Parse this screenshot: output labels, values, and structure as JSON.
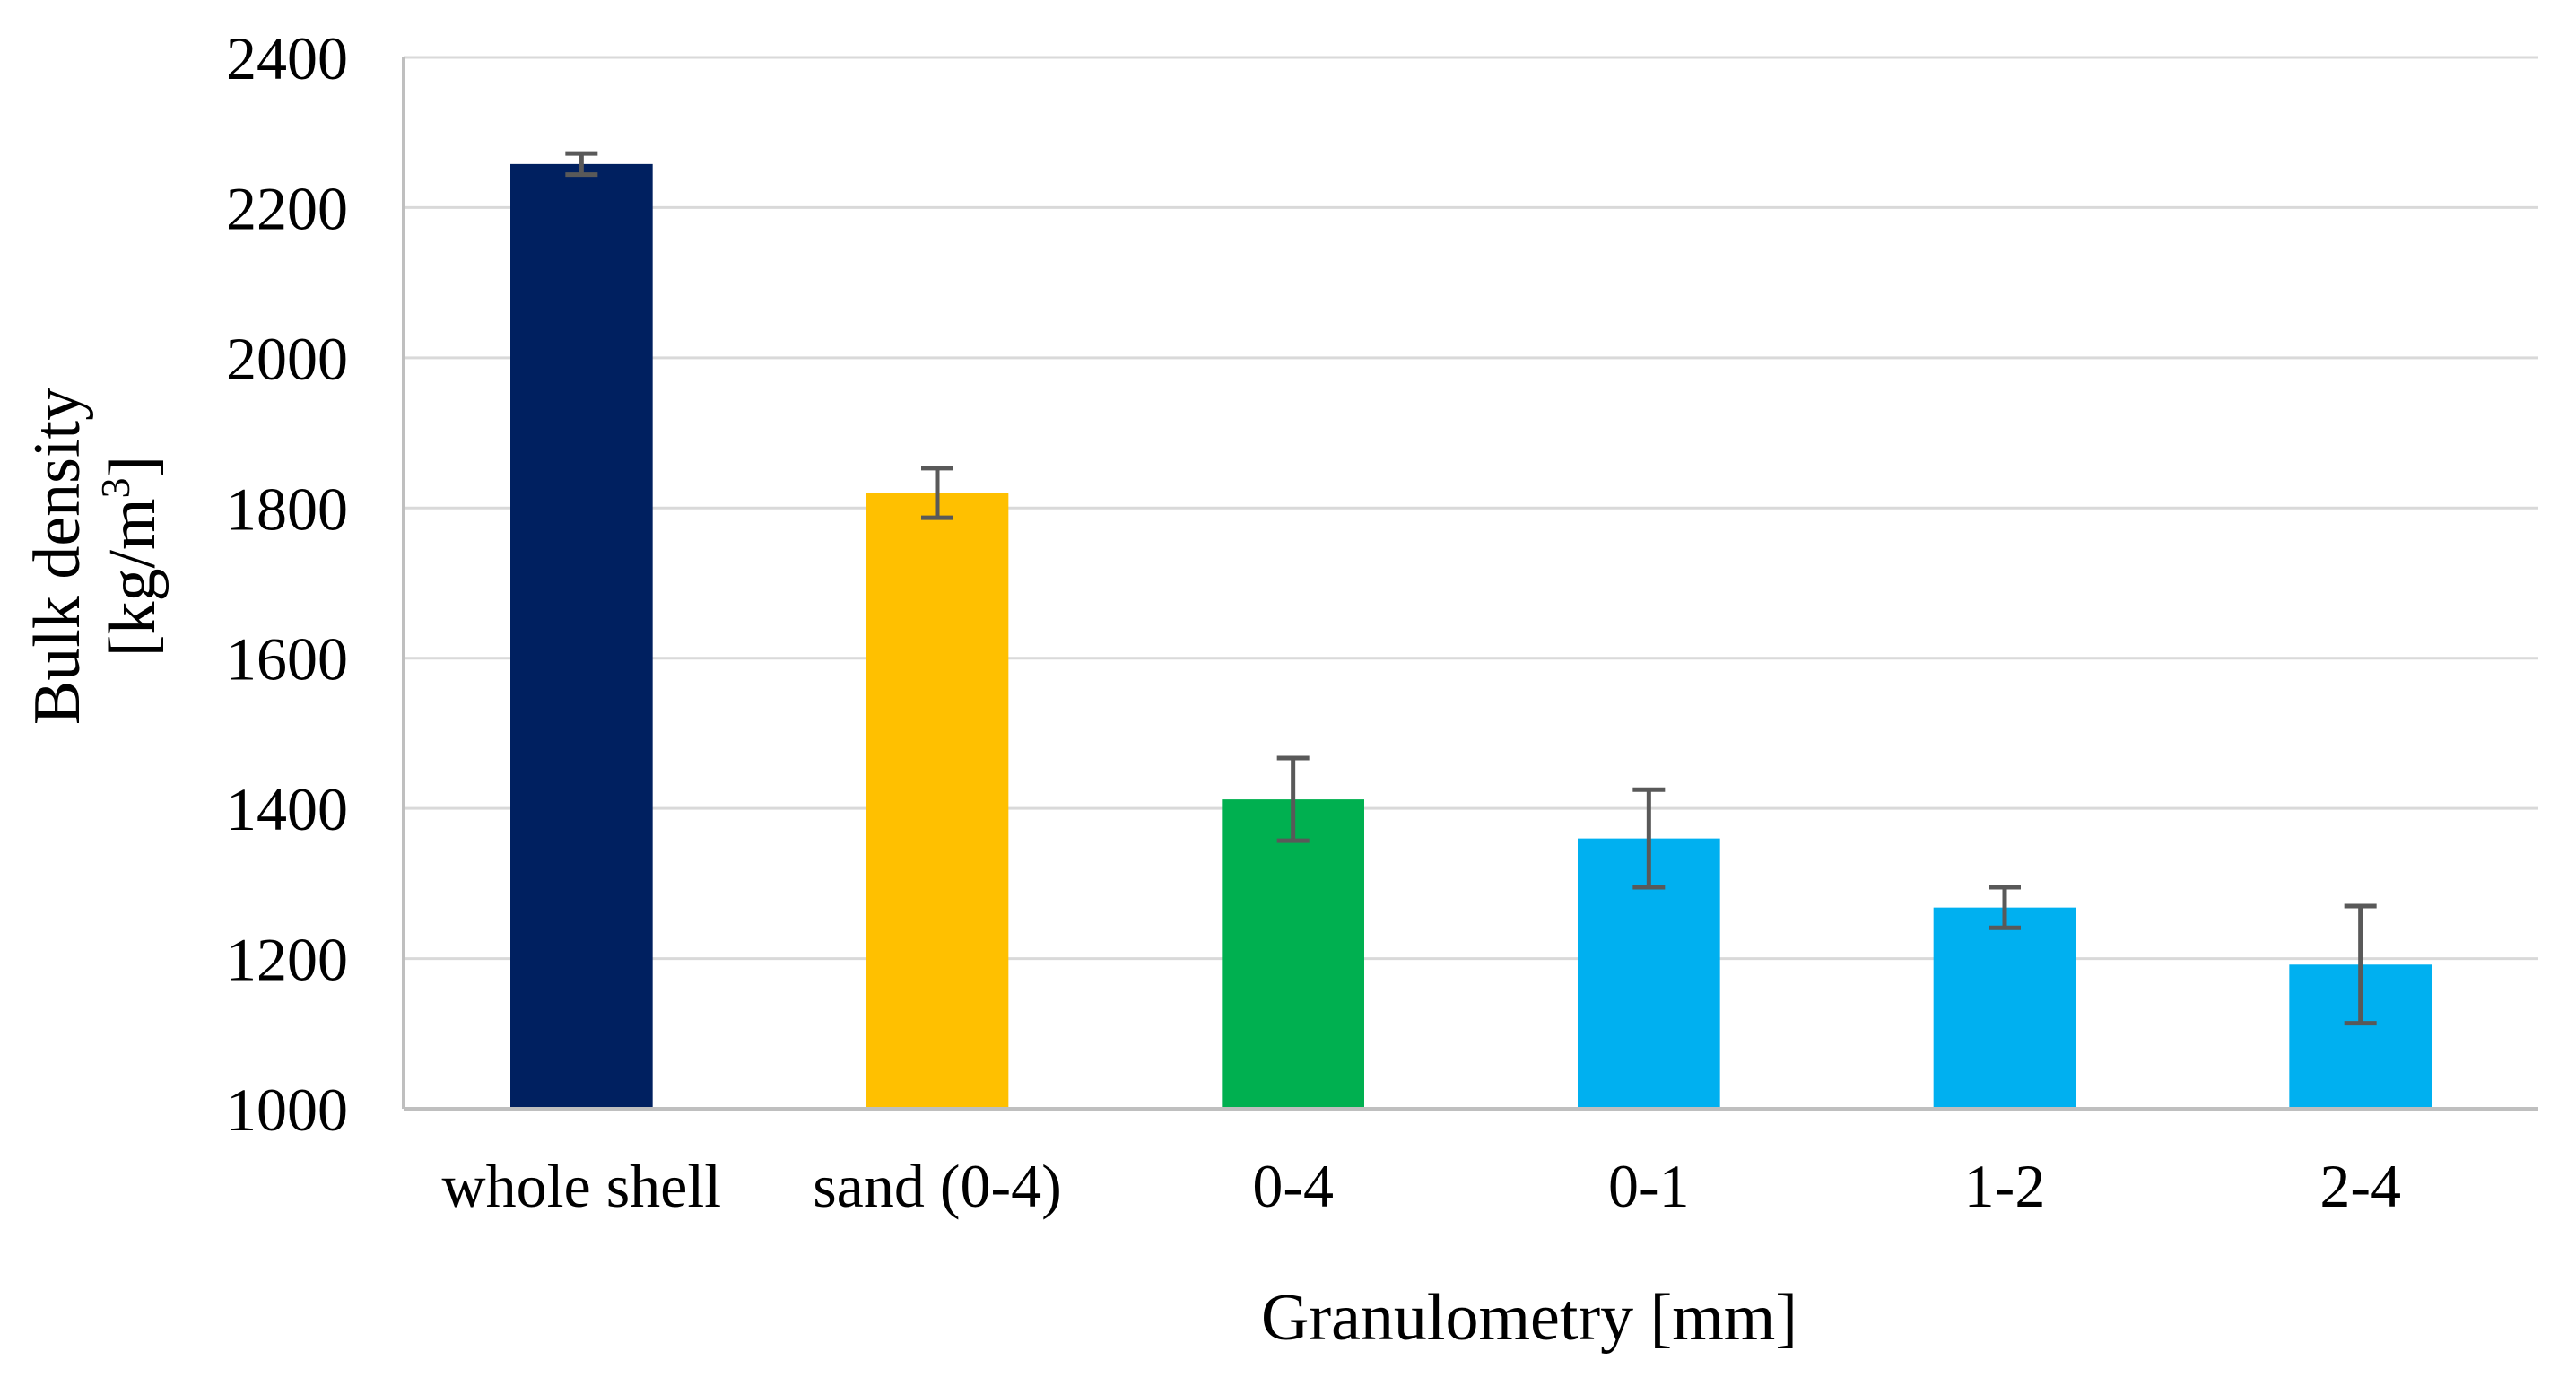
{
  "chart_data": {
    "type": "bar",
    "title": "",
    "xlabel": "Granulometry [mm]",
    "ylabel": {
      "line1": "Bulk density",
      "line2_prefix": "[kg/m",
      "line2_superscript": "3",
      "line2_suffix": "]"
    },
    "ylim": [
      1000,
      2400
    ],
    "yticks": [
      "1000",
      "1200",
      "1400",
      "1600",
      "1800",
      "2000",
      "2200",
      "2400"
    ],
    "grid": true,
    "legend": "none",
    "categories": [
      "whole shell",
      "sand (0-4)",
      "0-4",
      "0-1",
      "1-2",
      "2-4"
    ],
    "values": [
      2258,
      1820,
      1412,
      1360,
      1268,
      1192
    ],
    "errors": [
      14,
      33,
      55,
      65,
      27,
      78
    ],
    "colors": [
      "#002060",
      "#FFC000",
      "#00B050",
      "#00B0F0",
      "#00B0F0",
      "#00B0F0"
    ],
    "error_bar_color": "#595959",
    "grid_color": "#d9d9d9",
    "axis_color": "#bfbfbf"
  }
}
